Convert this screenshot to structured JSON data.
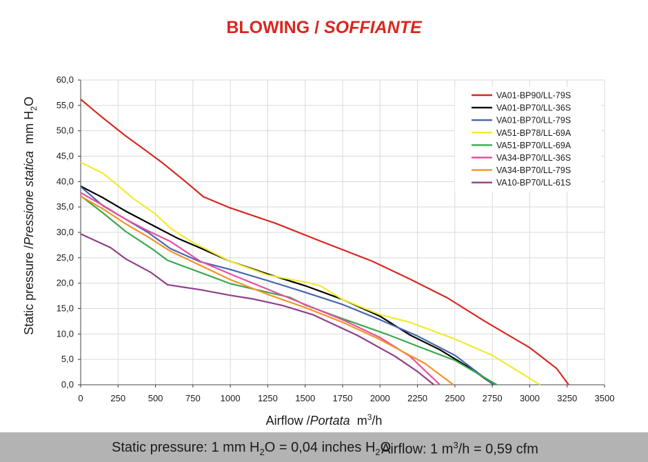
{
  "title": {
    "main": "BLOWING /",
    "italic": "SOFFIANTE"
  },
  "footer": {
    "pressure_pre": "Static pressure: 1 mm H",
    "pressure_sub1": "2",
    "pressure_mid": "O = 0,04 inches H",
    "pressure_sub2": "2",
    "pressure_post": "O",
    "airflow_pre": "Airflow: 1 m",
    "airflow_sup": "3",
    "airflow_post": "/h = 0,59 cfm"
  },
  "colors": {
    "title": "#d9271e",
    "footer_bg": "#b3b3b3",
    "grid": "#d9d9d9"
  },
  "chart_data": {
    "type": "line",
    "title": "BLOWING / SOFFIANTE",
    "xlabel": {
      "main": "Airflow /",
      "italic": "Portata",
      "unit_pre": "m",
      "unit_sup": "3",
      "unit_post": "/h"
    },
    "ylabel": {
      "main": "Static pressure /",
      "italic": "Pressione statica",
      "unit_pre": "mm H",
      "unit_sub": "2",
      "unit_post": "O"
    },
    "xlim": [
      0,
      3500
    ],
    "ylim": [
      0,
      60
    ],
    "xticks": [
      "0",
      "250",
      "500",
      "750",
      "1000",
      "1250",
      "1500",
      "1750",
      "2000",
      "2250",
      "2500",
      "2750",
      "3000",
      "3250",
      "3500"
    ],
    "yticks": [
      "0,0",
      "5,0",
      "10,0",
      "15,0",
      "20,0",
      "25,0",
      "30,0",
      "35,0",
      "40,0",
      "45,0",
      "50,0",
      "55,0",
      "60,0"
    ],
    "legend_position": "top-right",
    "series": [
      {
        "name": "VA01-BP90/LL-79S",
        "color": "#d9271e",
        "points": [
          [
            0,
            56.2
          ],
          [
            150,
            52.5
          ],
          [
            300,
            49
          ],
          [
            450,
            45.8
          ],
          [
            550,
            43.6
          ],
          [
            700,
            40
          ],
          [
            820,
            37
          ],
          [
            1000,
            34.8
          ],
          [
            1300,
            31.8
          ],
          [
            1600,
            28.3
          ],
          [
            1950,
            24.3
          ],
          [
            2200,
            20.8
          ],
          [
            2450,
            17.1
          ],
          [
            2700,
            12.5
          ],
          [
            3000,
            7.3
          ],
          [
            3180,
            3.2
          ],
          [
            3260,
            0
          ]
        ]
      },
      {
        "name": "VA01-BP70/LL-36S",
        "color": "#000000",
        "points": [
          [
            0,
            39.1
          ],
          [
            150,
            36.8
          ],
          [
            300,
            34.2
          ],
          [
            500,
            31.1
          ],
          [
            650,
            28.8
          ],
          [
            800,
            26.9
          ],
          [
            1000,
            24.3
          ],
          [
            1250,
            21.8
          ],
          [
            1500,
            19.5
          ],
          [
            1750,
            16.8
          ],
          [
            2000,
            13.5
          ],
          [
            2200,
            9.8
          ],
          [
            2400,
            6.9
          ],
          [
            2600,
            3.3
          ],
          [
            2760,
            0
          ]
        ]
      },
      {
        "name": "VA01-BP70/LL-79S",
        "color": "#4665b0",
        "points": [
          [
            0,
            39
          ],
          [
            150,
            35.2
          ],
          [
            300,
            32.6
          ],
          [
            450,
            30
          ],
          [
            600,
            26.8
          ],
          [
            800,
            24.2
          ],
          [
            1000,
            22.7
          ],
          [
            1250,
            20.5
          ],
          [
            1500,
            18.2
          ],
          [
            1750,
            15.8
          ],
          [
            2000,
            12.8
          ],
          [
            2250,
            9.6
          ],
          [
            2500,
            5.8
          ],
          [
            2760,
            0
          ]
        ]
      },
      {
        "name": "VA51-BP78/LL-69A",
        "color": "#f2ea2c",
        "points": [
          [
            0,
            43.8
          ],
          [
            150,
            41.6
          ],
          [
            250,
            39.2
          ],
          [
            350,
            36.7
          ],
          [
            500,
            33.6
          ],
          [
            600,
            30.8
          ],
          [
            750,
            28
          ],
          [
            1000,
            24.3
          ],
          [
            1250,
            21.6
          ],
          [
            1500,
            20.2
          ],
          [
            1600,
            19.5
          ],
          [
            1750,
            16.8
          ],
          [
            2000,
            13.8
          ],
          [
            2200,
            12.3
          ],
          [
            2500,
            9
          ],
          [
            2750,
            5.8
          ],
          [
            3070,
            0
          ]
        ]
      },
      {
        "name": "VA51-BP70/LL-69A",
        "color": "#3aa94b",
        "points": [
          [
            0,
            37.2
          ],
          [
            150,
            33.8
          ],
          [
            300,
            30.2
          ],
          [
            480,
            26.7
          ],
          [
            580,
            24.5
          ],
          [
            800,
            22.1
          ],
          [
            1000,
            19.9
          ],
          [
            1250,
            18.2
          ],
          [
            1400,
            17.2
          ],
          [
            1500,
            15.7
          ],
          [
            1750,
            13
          ],
          [
            2050,
            9.9
          ],
          [
            2250,
            7.6
          ],
          [
            2500,
            4.8
          ],
          [
            2780,
            0
          ]
        ]
      },
      {
        "name": "VA34-BP70/LL-36S",
        "color": "#e84ea0",
        "points": [
          [
            0,
            37.8
          ],
          [
            150,
            35.3
          ],
          [
            300,
            32.6
          ],
          [
            450,
            30.3
          ],
          [
            600,
            28.2
          ],
          [
            800,
            24.3
          ],
          [
            1000,
            21.8
          ],
          [
            1250,
            18.8
          ],
          [
            1500,
            15.8
          ],
          [
            1750,
            12.8
          ],
          [
            2000,
            9.3
          ],
          [
            2200,
            5.6
          ],
          [
            2400,
            0
          ]
        ]
      },
      {
        "name": "VA34-BP70/LL-79S",
        "color": "#f39226",
        "points": [
          [
            0,
            37.1
          ],
          [
            150,
            34.6
          ],
          [
            300,
            31.7
          ],
          [
            450,
            29.1
          ],
          [
            600,
            26.3
          ],
          [
            800,
            23.5
          ],
          [
            1000,
            20.7
          ],
          [
            1250,
            17.8
          ],
          [
            1500,
            15.2
          ],
          [
            1750,
            12.3
          ],
          [
            2000,
            8.9
          ],
          [
            2300,
            4.2
          ],
          [
            2490,
            0
          ]
        ]
      },
      {
        "name": "VA10-BP70/LL-61S",
        "color": "#8e3f8a",
        "points": [
          [
            0,
            29.7
          ],
          [
            200,
            27
          ],
          [
            300,
            24.8
          ],
          [
            470,
            22.1
          ],
          [
            580,
            19.7
          ],
          [
            800,
            18.7
          ],
          [
            1000,
            17.6
          ],
          [
            1150,
            16.9
          ],
          [
            1350,
            15.6
          ],
          [
            1550,
            13.8
          ],
          [
            1850,
            9.7
          ],
          [
            2100,
            5.6
          ],
          [
            2250,
            2.6
          ],
          [
            2360,
            0
          ]
        ]
      }
    ]
  }
}
